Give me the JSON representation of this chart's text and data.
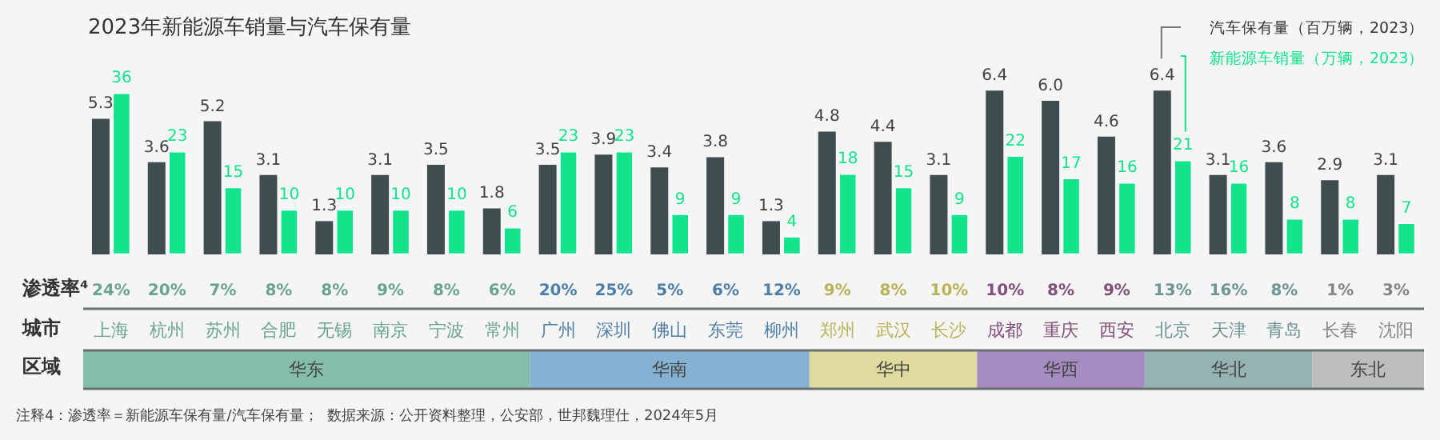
{
  "chart_data": {
    "type": "bar",
    "title": "2023年新能源车销量与汽车保有量",
    "categories": [
      "上海",
      "杭州",
      "苏州",
      "合肥",
      "无锡",
      "南京",
      "宁波",
      "常州",
      "广州",
      "深圳",
      "佛山",
      "东莞",
      "柳州",
      "郑州",
      "武汉",
      "长沙",
      "成都",
      "重庆",
      "西安",
      "北京",
      "天津",
      "青岛",
      "长春",
      "沈阳"
    ],
    "series": [
      {
        "name": "汽车保有量（百万辆，2023）",
        "color": "#3f4d4f",
        "values": [
          5.3,
          3.6,
          5.2,
          3.1,
          1.3,
          3.1,
          3.5,
          1.8,
          3.5,
          3.9,
          3.4,
          3.8,
          1.3,
          4.8,
          4.4,
          3.1,
          6.4,
          6.0,
          4.6,
          6.4,
          3.1,
          3.6,
          2.9,
          3.1
        ],
        "value_labels": [
          "5.3",
          "3.6",
          "5.2",
          "3.1",
          "1.3",
          "3.1",
          "3.5",
          "1.8",
          "3.5",
          "3.9",
          "3.4",
          "3.8",
          "1.3",
          "4.8",
          "4.4",
          "3.1",
          "6.4",
          "6.0",
          "4.6",
          "6.4",
          "3.1",
          "3.6",
          "2.9",
          "3.1"
        ]
      },
      {
        "name": "新能源车销量（万辆，2023）",
        "color": "#13e38a",
        "axis": "y2",
        "values": [
          36,
          23,
          15,
          10,
          10,
          10,
          10,
          6,
          23,
          23,
          9,
          9,
          4,
          18,
          15,
          9,
          22,
          17,
          16,
          21,
          16,
          8,
          8,
          7
        ]
      }
    ],
    "tick_labels": "x",
    "data_labels": true,
    "legend": "top right",
    "annotations": [
      "渗透率⁴",
      "24%",
      "20%",
      "7%",
      "8%",
      "8%",
      "9%",
      "8%",
      "6%",
      "20%",
      "25%",
      "5%",
      "6%",
      "12%",
      "9%",
      "8%",
      "10%",
      "10%",
      "8%",
      "9%",
      "13%",
      "16%",
      "8%",
      "1%",
      "3%",
      "城市",
      "区域",
      "华东",
      "华南",
      "华中",
      "华西",
      "华北",
      "东北",
      "注释4：渗透率＝新能源车保有量/汽车保有量；  数据来源：公开资料整理，公安部，世邦魏理仕，2024年5月"
    ]
  }
}
